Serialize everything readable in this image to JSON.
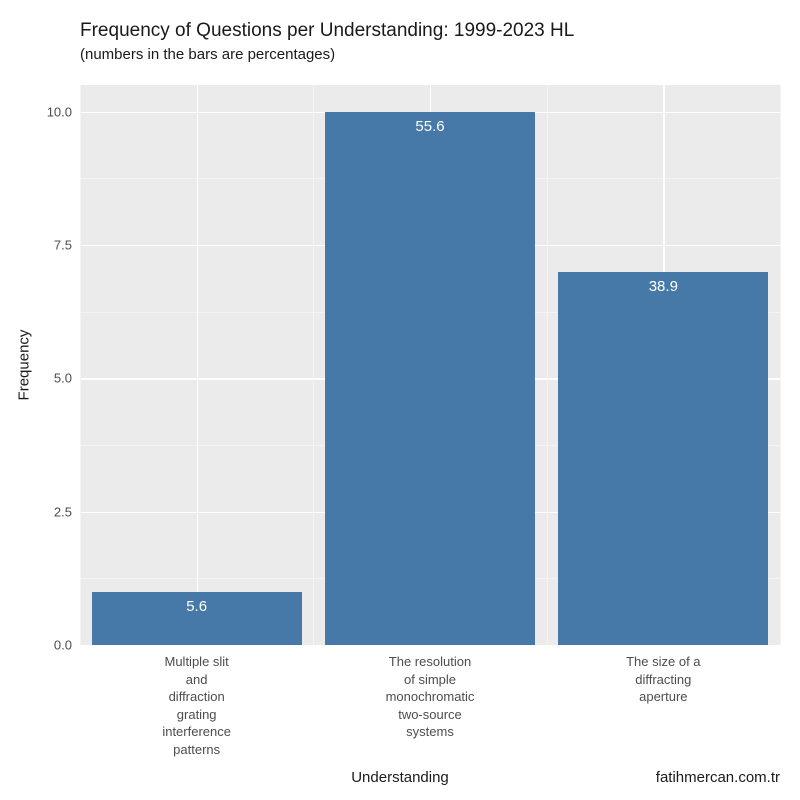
{
  "chart": {
    "type": "bar",
    "title": "Frequency of Questions per Understanding: 1999-2023 HL",
    "subtitle": "(numbers in the bars are percentages)",
    "x_axis_title": "Understanding",
    "y_axis_title": "Frequency",
    "caption": "fatihmercan.com.tr",
    "background_color": "#ebebeb",
    "grid_major_color": "#ffffff",
    "grid_minor_color": "#f4f4f4",
    "bar_color": "#4779a8",
    "bar_label_color": "#ffffff",
    "text_color": "#1a1a1a",
    "tick_color": "#4d4d4d",
    "title_fontsize": 19,
    "subtitle_fontsize": 15,
    "axis_title_fontsize": 15,
    "tick_fontsize": 13,
    "bar_label_fontsize": 15,
    "caption_fontsize": 15,
    "ylim": [
      0,
      10.5
    ],
    "y_ticks": [
      "0.0",
      "2.5",
      "5.0",
      "7.5",
      "10.0"
    ],
    "y_tick_values": [
      0,
      2.5,
      5,
      7.5,
      10
    ],
    "y_minor_values": [
      1.25,
      3.75,
      6.25,
      8.75
    ],
    "bar_width": 0.9,
    "categories": [
      "Multiple slit\nand\ndiffraction\ngrating\ninterference\npatterns",
      "The resolution\nof simple\nmonochromatic\ntwo-source\nsystems",
      "The size of a\ndiffracting\naperture"
    ],
    "values": [
      1,
      10,
      7
    ],
    "bar_percent_labels": [
      "5.6",
      "55.6",
      "38.9"
    ]
  }
}
